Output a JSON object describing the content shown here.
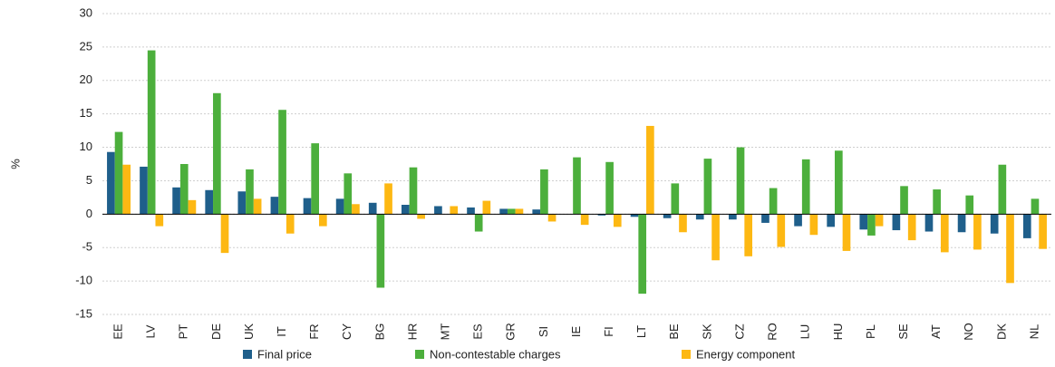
{
  "chart_data": {
    "type": "bar",
    "y_label": "%",
    "categories": [
      "EE",
      "LV",
      "PT",
      "DE",
      "UK",
      "IT",
      "FR",
      "CY",
      "BG",
      "HR",
      "MT",
      "ES",
      "GR",
      "SI",
      "IE",
      "FI",
      "LT",
      "BE",
      "SK",
      "CZ",
      "RO",
      "LU",
      "HU",
      "PL",
      "SE",
      "AT",
      "NO",
      "DK",
      "NL"
    ],
    "series": [
      {
        "name": "Final price",
        "color": "#1f5f8b",
        "values": [
          9.3,
          7.1,
          4.0,
          3.6,
          3.4,
          2.6,
          2.4,
          2.3,
          1.7,
          1.4,
          1.2,
          1.0,
          0.8,
          0.7,
          0,
          -0.2,
          -0.4,
          -0.6,
          -0.8,
          -0.8,
          -1.3,
          -1.8,
          -1.9,
          -2.3,
          -2.4,
          -2.6,
          -2.7,
          -2.9,
          -3.6
        ]
      },
      {
        "name": "Non-contestable charges",
        "color": "#4caf3c",
        "values": [
          12.3,
          24.5,
          7.5,
          18.1,
          6.7,
          15.6,
          10.6,
          6.1,
          -11,
          7.0,
          0,
          -2.6,
          0.8,
          6.7,
          8.5,
          7.8,
          -11.9,
          4.6,
          8.3,
          10.0,
          3.9,
          8.2,
          9.5,
          -3.2,
          4.2,
          3.7,
          2.8,
          7.4,
          2.3
        ]
      },
      {
        "name": "Energy component",
        "color": "#fdb813",
        "values": [
          7.4,
          -1.8,
          2.1,
          -5.8,
          2.3,
          -2.9,
          -1.8,
          1.5,
          4.6,
          -0.7,
          1.2,
          2.0,
          0.8,
          -1.1,
          -1.6,
          -1.9,
          13.2,
          -2.7,
          -6.9,
          -6.3,
          -4.9,
          -3.1,
          -5.5,
          -1.8,
          -3.9,
          -5.7,
          -5.3,
          -10.3,
          -5.2
        ]
      }
    ],
    "ylim": [
      -15,
      30
    ],
    "yticks": [
      -15,
      -10,
      -5,
      0,
      5,
      10,
      15,
      20,
      25,
      30
    ],
    "grid": true
  }
}
